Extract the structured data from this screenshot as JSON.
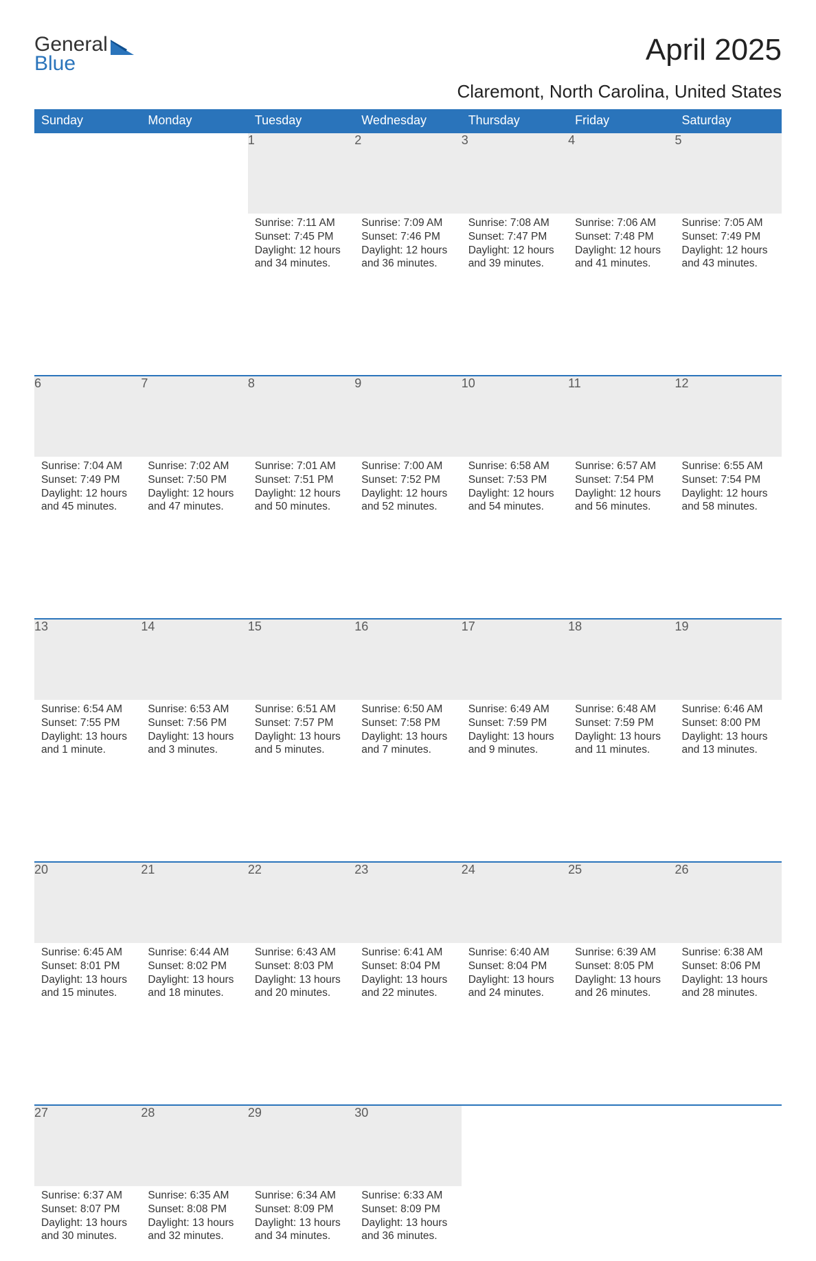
{
  "logo": {
    "line1": "General",
    "line2": "Blue"
  },
  "title": "April 2025",
  "location": "Claremont, North Carolina, United States",
  "colors": {
    "header_bg": "#2a74bb",
    "header_fg": "#ffffff",
    "daynum_bg": "#ececec",
    "daynum_fg": "#5a5a5a",
    "rule": "#2a74bb",
    "body_text": "#333333",
    "page_bg": "#ffffff"
  },
  "week_headers": [
    "Sunday",
    "Monday",
    "Tuesday",
    "Wednesday",
    "Thursday",
    "Friday",
    "Saturday"
  ],
  "weeks": [
    [
      null,
      null,
      {
        "n": "1",
        "sr": "7:11 AM",
        "ss": "7:45 PM",
        "dl": "12 hours and 34 minutes."
      },
      {
        "n": "2",
        "sr": "7:09 AM",
        "ss": "7:46 PM",
        "dl": "12 hours and 36 minutes."
      },
      {
        "n": "3",
        "sr": "7:08 AM",
        "ss": "7:47 PM",
        "dl": "12 hours and 39 minutes."
      },
      {
        "n": "4",
        "sr": "7:06 AM",
        "ss": "7:48 PM",
        "dl": "12 hours and 41 minutes."
      },
      {
        "n": "5",
        "sr": "7:05 AM",
        "ss": "7:49 PM",
        "dl": "12 hours and 43 minutes."
      }
    ],
    [
      {
        "n": "6",
        "sr": "7:04 AM",
        "ss": "7:49 PM",
        "dl": "12 hours and 45 minutes."
      },
      {
        "n": "7",
        "sr": "7:02 AM",
        "ss": "7:50 PM",
        "dl": "12 hours and 47 minutes."
      },
      {
        "n": "8",
        "sr": "7:01 AM",
        "ss": "7:51 PM",
        "dl": "12 hours and 50 minutes."
      },
      {
        "n": "9",
        "sr": "7:00 AM",
        "ss": "7:52 PM",
        "dl": "12 hours and 52 minutes."
      },
      {
        "n": "10",
        "sr": "6:58 AM",
        "ss": "7:53 PM",
        "dl": "12 hours and 54 minutes."
      },
      {
        "n": "11",
        "sr": "6:57 AM",
        "ss": "7:54 PM",
        "dl": "12 hours and 56 minutes."
      },
      {
        "n": "12",
        "sr": "6:55 AM",
        "ss": "7:54 PM",
        "dl": "12 hours and 58 minutes."
      }
    ],
    [
      {
        "n": "13",
        "sr": "6:54 AM",
        "ss": "7:55 PM",
        "dl": "13 hours and 1 minute."
      },
      {
        "n": "14",
        "sr": "6:53 AM",
        "ss": "7:56 PM",
        "dl": "13 hours and 3 minutes."
      },
      {
        "n": "15",
        "sr": "6:51 AM",
        "ss": "7:57 PM",
        "dl": "13 hours and 5 minutes."
      },
      {
        "n": "16",
        "sr": "6:50 AM",
        "ss": "7:58 PM",
        "dl": "13 hours and 7 minutes."
      },
      {
        "n": "17",
        "sr": "6:49 AM",
        "ss": "7:59 PM",
        "dl": "13 hours and 9 minutes."
      },
      {
        "n": "18",
        "sr": "6:48 AM",
        "ss": "7:59 PM",
        "dl": "13 hours and 11 minutes."
      },
      {
        "n": "19",
        "sr": "6:46 AM",
        "ss": "8:00 PM",
        "dl": "13 hours and 13 minutes."
      }
    ],
    [
      {
        "n": "20",
        "sr": "6:45 AM",
        "ss": "8:01 PM",
        "dl": "13 hours and 15 minutes."
      },
      {
        "n": "21",
        "sr": "6:44 AM",
        "ss": "8:02 PM",
        "dl": "13 hours and 18 minutes."
      },
      {
        "n": "22",
        "sr": "6:43 AM",
        "ss": "8:03 PM",
        "dl": "13 hours and 20 minutes."
      },
      {
        "n": "23",
        "sr": "6:41 AM",
        "ss": "8:04 PM",
        "dl": "13 hours and 22 minutes."
      },
      {
        "n": "24",
        "sr": "6:40 AM",
        "ss": "8:04 PM",
        "dl": "13 hours and 24 minutes."
      },
      {
        "n": "25",
        "sr": "6:39 AM",
        "ss": "8:05 PM",
        "dl": "13 hours and 26 minutes."
      },
      {
        "n": "26",
        "sr": "6:38 AM",
        "ss": "8:06 PM",
        "dl": "13 hours and 28 minutes."
      }
    ],
    [
      {
        "n": "27",
        "sr": "6:37 AM",
        "ss": "8:07 PM",
        "dl": "13 hours and 30 minutes."
      },
      {
        "n": "28",
        "sr": "6:35 AM",
        "ss": "8:08 PM",
        "dl": "13 hours and 32 minutes."
      },
      {
        "n": "29",
        "sr": "6:34 AM",
        "ss": "8:09 PM",
        "dl": "13 hours and 34 minutes."
      },
      {
        "n": "30",
        "sr": "6:33 AM",
        "ss": "8:09 PM",
        "dl": "13 hours and 36 minutes."
      },
      null,
      null,
      null
    ]
  ],
  "labels": {
    "sunrise": "Sunrise: ",
    "sunset": "Sunset: ",
    "daylight": "Daylight: "
  }
}
